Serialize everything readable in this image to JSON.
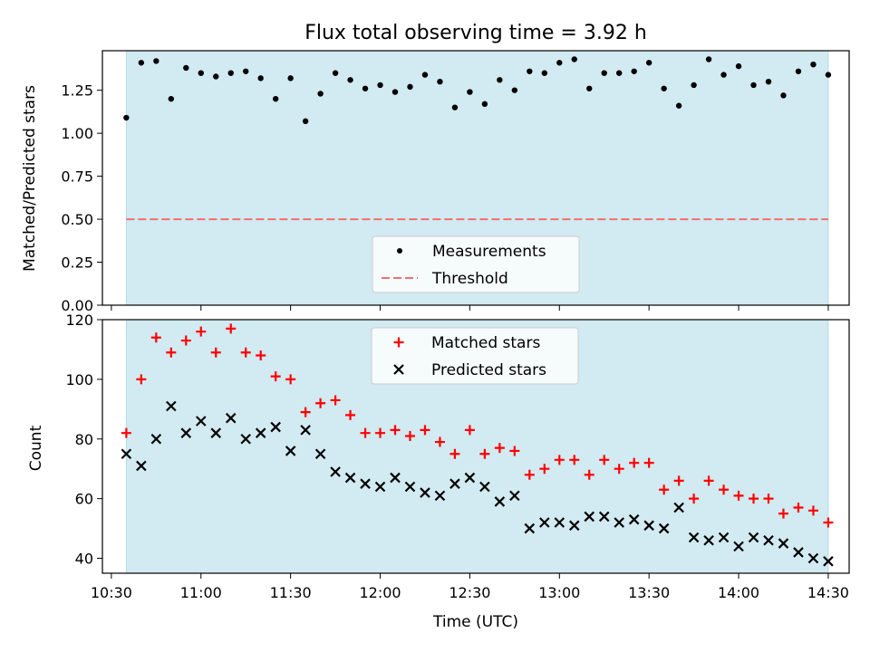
{
  "figure": {
    "title": "Flux total observing time = 3.92 h",
    "shade_color": "#add8e6",
    "background": "#ffffff"
  },
  "chart_data": [
    {
      "type": "scatter",
      "ylabel": "Matched/Predicted stars",
      "ylim": [
        0,
        1.48
      ],
      "yticks": [
        0.0,
        0.25,
        0.5,
        0.75,
        1.0,
        1.25
      ],
      "ytick_labels": [
        "0.00",
        "0.25",
        "0.50",
        "0.75",
        "1.00",
        "1.25"
      ],
      "legend": {
        "placement": "lower-center",
        "entries": [
          "Measurements",
          "Threshold"
        ]
      },
      "series": [
        {
          "name": "Measurements",
          "marker": "dot",
          "color": "#000000",
          "y": [
            1.09,
            1.41,
            1.42,
            1.2,
            1.38,
            1.35,
            1.33,
            1.35,
            1.36,
            1.32,
            1.2,
            1.32,
            1.07,
            1.23,
            1.35,
            1.31,
            1.26,
            1.28,
            1.24,
            1.27,
            1.34,
            1.3,
            1.15,
            1.24,
            1.17,
            1.31,
            1.25,
            1.36,
            1.35,
            1.41,
            1.43,
            1.26,
            1.35,
            1.35,
            1.36,
            1.41,
            1.26,
            1.16,
            1.28,
            1.43,
            1.34,
            1.39,
            1.28,
            1.3,
            1.22,
            1.36,
            1.4,
            1.34
          ]
        },
        {
          "name": "Threshold",
          "style": "dashed",
          "color": "#f07070",
          "value": 0.5
        }
      ]
    },
    {
      "type": "scatter",
      "xlabel": "Time (UTC)",
      "ylabel": "Count",
      "ylim": [
        35,
        120
      ],
      "yticks": [
        40,
        60,
        80,
        100,
        120
      ],
      "ytick_labels": [
        "40",
        "60",
        "80",
        "100",
        "120"
      ],
      "legend": {
        "placement": "top-center",
        "entries": [
          "Matched stars",
          "Predicted stars"
        ]
      },
      "series": [
        {
          "name": "Matched stars",
          "marker": "plus",
          "color": "#ff0000",
          "y": [
            82,
            100,
            114,
            109,
            113,
            116,
            109,
            117,
            109,
            108,
            101,
            100,
            89,
            92,
            93,
            88,
            82,
            82,
            83,
            81,
            83,
            79,
            75,
            83,
            75,
            77,
            76,
            68,
            70,
            73,
            73,
            68,
            73,
            70,
            72,
            72,
            63,
            66,
            60,
            66,
            63,
            61,
            60,
            60,
            55,
            57,
            56,
            52
          ]
        },
        {
          "name": "Predicted stars",
          "marker": "x",
          "color": "#000000",
          "y": [
            75,
            71,
            80,
            91,
            82,
            86,
            82,
            87,
            80,
            82,
            84,
            76,
            83,
            75,
            69,
            67,
            65,
            64,
            67,
            64,
            62,
            61,
            65,
            67,
            64,
            59,
            61,
            50,
            52,
            52,
            51,
            54,
            54,
            52,
            53,
            51,
            50,
            57,
            47,
            46,
            47,
            44,
            47,
            46,
            45,
            42,
            40,
            39
          ]
        }
      ]
    }
  ],
  "x_axis": {
    "start_time": "10:35",
    "end_time": "14:30",
    "ticks": [
      "10:30",
      "11:00",
      "11:30",
      "12:00",
      "12:30",
      "13:00",
      "13:30",
      "14:00",
      "14:30"
    ],
    "xlim": [
      "10:27",
      "14:37"
    ],
    "shaded_span": [
      "10:35",
      "14:30"
    ],
    "label": "Time (UTC)"
  }
}
